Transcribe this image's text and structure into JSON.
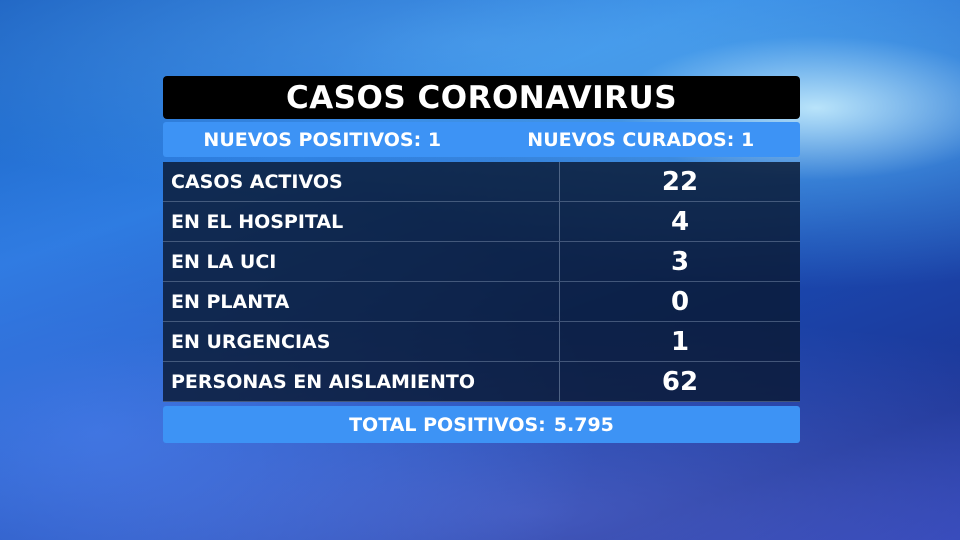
{
  "title": "CASOS CORONAVIRUS",
  "summary": {
    "new_positives": "NUEVOS POSITIVOS: 1",
    "new_cured": "NUEVOS CURADOS: 1"
  },
  "rows": [
    {
      "label": "CASOS ACTIVOS",
      "value": "22"
    },
    {
      "label": "EN EL HOSPITAL",
      "value": "4"
    },
    {
      "label": "EN LA UCI",
      "value": "3"
    },
    {
      "label": "EN PLANTA",
      "value": "0"
    },
    {
      "label": "EN URGENCIAS",
      "value": "1"
    },
    {
      "label": "PERSONAS EN AISLAMIENTO",
      "value": "62"
    }
  ],
  "total": {
    "label": "TOTAL POSITIVOS:",
    "value": "5.795"
  },
  "colors": {
    "accent": "#3d93f5",
    "title_bg": "#000000",
    "row_bg": "#0a1932"
  }
}
